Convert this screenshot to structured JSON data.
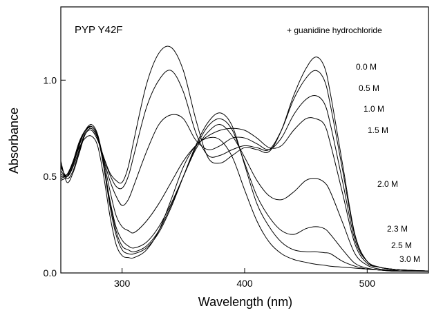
{
  "chart_data": {
    "type": "line",
    "title": "PYP Y42F",
    "annotation": "+ guanidine hydrochloride",
    "xlabel": "Wavelength (nm)",
    "ylabel": "Absorbance",
    "xlim": [
      250,
      550
    ],
    "ylim": [
      0,
      1.38
    ],
    "x_ticks": [
      300,
      400,
      500
    ],
    "y_ticks": [
      0.0,
      0.5,
      1.0
    ],
    "x_tick_labels": [
      "300",
      "400",
      "500"
    ],
    "y_tick_labels": [
      "0.0",
      "0.5",
      "1.0"
    ],
    "grid": false,
    "legend": "none",
    "line_color": "#000000",
    "series": [
      {
        "name": "0.0 M",
        "x": [
          250,
          255,
          260,
          265,
          270,
          275,
          280,
          285,
          290,
          295,
          300,
          305,
          310,
          320,
          330,
          340,
          350,
          360,
          370,
          380,
          390,
          400,
          410,
          420,
          430,
          440,
          450,
          458,
          465,
          470,
          480,
          490,
          500,
          510,
          520,
          530,
          550
        ],
        "y": [
          0.58,
          0.47,
          0.52,
          0.62,
          0.72,
          0.74,
          0.69,
          0.6,
          0.52,
          0.48,
          0.47,
          0.55,
          0.7,
          0.98,
          1.14,
          1.17,
          1.05,
          0.8,
          0.6,
          0.57,
          0.61,
          0.65,
          0.64,
          0.63,
          0.74,
          0.92,
          1.06,
          1.12,
          1.07,
          0.93,
          0.56,
          0.2,
          0.06,
          0.03,
          0.02,
          0.015,
          0.01
        ]
      },
      {
        "name": "0.5 M",
        "x": [
          250,
          255,
          260,
          265,
          270,
          275,
          280,
          285,
          290,
          295,
          300,
          305,
          310,
          320,
          330,
          340,
          350,
          360,
          370,
          380,
          390,
          400,
          410,
          420,
          430,
          440,
          450,
          458,
          465,
          470,
          480,
          490,
          500,
          510,
          520,
          530,
          550
        ],
        "y": [
          0.56,
          0.49,
          0.53,
          0.63,
          0.72,
          0.75,
          0.7,
          0.6,
          0.51,
          0.45,
          0.44,
          0.5,
          0.62,
          0.86,
          1.0,
          1.05,
          0.94,
          0.73,
          0.61,
          0.61,
          0.64,
          0.66,
          0.65,
          0.64,
          0.74,
          0.9,
          1.01,
          1.05,
          1.0,
          0.87,
          0.53,
          0.19,
          0.06,
          0.03,
          0.02,
          0.015,
          0.01
        ]
      },
      {
        "name": "1.0 M",
        "x": [
          250,
          255,
          260,
          265,
          270,
          275,
          280,
          285,
          290,
          295,
          300,
          305,
          310,
          320,
          330,
          340,
          350,
          360,
          370,
          380,
          390,
          400,
          410,
          420,
          430,
          440,
          450,
          458,
          465,
          470,
          480,
          490,
          500,
          510,
          520,
          530,
          550
        ],
        "y": [
          0.55,
          0.5,
          0.55,
          0.64,
          0.73,
          0.76,
          0.71,
          0.59,
          0.48,
          0.4,
          0.35,
          0.38,
          0.46,
          0.63,
          0.77,
          0.82,
          0.8,
          0.69,
          0.64,
          0.66,
          0.7,
          0.7,
          0.67,
          0.64,
          0.7,
          0.82,
          0.9,
          0.92,
          0.88,
          0.77,
          0.47,
          0.17,
          0.06,
          0.03,
          0.02,
          0.015,
          0.01
        ]
      },
      {
        "name": "1.5 M",
        "x": [
          250,
          255,
          260,
          265,
          270,
          275,
          280,
          285,
          290,
          295,
          300,
          305,
          310,
          320,
          330,
          340,
          350,
          360,
          370,
          380,
          390,
          400,
          410,
          420,
          430,
          440,
          450,
          458,
          465,
          470,
          480,
          490,
          500,
          510,
          520,
          530,
          550
        ],
        "y": [
          0.53,
          0.5,
          0.56,
          0.66,
          0.74,
          0.77,
          0.72,
          0.58,
          0.43,
          0.3,
          0.24,
          0.22,
          0.21,
          0.27,
          0.36,
          0.47,
          0.58,
          0.66,
          0.71,
          0.74,
          0.75,
          0.74,
          0.7,
          0.65,
          0.66,
          0.74,
          0.8,
          0.8,
          0.77,
          0.67,
          0.41,
          0.15,
          0.05,
          0.03,
          0.02,
          0.015,
          0.01
        ]
      },
      {
        "name": "2.0 M",
        "x": [
          250,
          255,
          260,
          265,
          270,
          275,
          280,
          285,
          290,
          295,
          300,
          305,
          310,
          320,
          330,
          340,
          350,
          360,
          370,
          380,
          390,
          400,
          410,
          420,
          430,
          440,
          450,
          458,
          465,
          470,
          480,
          490,
          500,
          510,
          520,
          530,
          550
        ],
        "y": [
          0.51,
          0.51,
          0.57,
          0.67,
          0.74,
          0.75,
          0.7,
          0.56,
          0.38,
          0.24,
          0.17,
          0.14,
          0.13,
          0.16,
          0.24,
          0.36,
          0.5,
          0.64,
          0.73,
          0.77,
          0.71,
          0.6,
          0.48,
          0.4,
          0.38,
          0.42,
          0.48,
          0.49,
          0.47,
          0.42,
          0.26,
          0.1,
          0.04,
          0.02,
          0.015,
          0.01,
          0.01
        ]
      },
      {
        "name": "2.3 M",
        "x": [
          250,
          255,
          260,
          265,
          270,
          275,
          280,
          285,
          290,
          295,
          300,
          305,
          310,
          320,
          330,
          340,
          350,
          360,
          370,
          380,
          390,
          400,
          410,
          420,
          430,
          440,
          450,
          458,
          465,
          470,
          480,
          490,
          500,
          510,
          520,
          530,
          550
        ],
        "y": [
          0.5,
          0.51,
          0.57,
          0.67,
          0.74,
          0.76,
          0.71,
          0.56,
          0.37,
          0.22,
          0.14,
          0.12,
          0.11,
          0.14,
          0.22,
          0.35,
          0.5,
          0.65,
          0.76,
          0.8,
          0.74,
          0.57,
          0.4,
          0.29,
          0.22,
          0.2,
          0.23,
          0.24,
          0.23,
          0.2,
          0.12,
          0.05,
          0.025,
          0.015,
          0.01,
          0.01,
          0.01
        ]
      },
      {
        "name": "2.5 M",
        "x": [
          250,
          255,
          260,
          265,
          270,
          275,
          280,
          285,
          290,
          295,
          300,
          305,
          310,
          320,
          330,
          340,
          350,
          360,
          370,
          380,
          390,
          400,
          410,
          420,
          430,
          440,
          450,
          458,
          465,
          470,
          480,
          490,
          500,
          510,
          520,
          530,
          550
        ],
        "y": [
          0.49,
          0.51,
          0.58,
          0.68,
          0.74,
          0.76,
          0.71,
          0.55,
          0.35,
          0.2,
          0.12,
          0.1,
          0.1,
          0.13,
          0.21,
          0.34,
          0.5,
          0.66,
          0.78,
          0.83,
          0.76,
          0.56,
          0.36,
          0.24,
          0.16,
          0.12,
          0.11,
          0.11,
          0.105,
          0.1,
          0.06,
          0.035,
          0.02,
          0.015,
          0.01,
          0.01,
          0.01
        ]
      },
      {
        "name": "3.0 M",
        "x": [
          250,
          255,
          260,
          265,
          270,
          275,
          280,
          285,
          290,
          295,
          300,
          305,
          310,
          320,
          330,
          340,
          350,
          360,
          370,
          380,
          390,
          400,
          410,
          420,
          430,
          440,
          450,
          458,
          465,
          470,
          480,
          490,
          500,
          510,
          520,
          530,
          550
        ],
        "y": [
          0.48,
          0.5,
          0.57,
          0.65,
          0.7,
          0.71,
          0.66,
          0.5,
          0.3,
          0.15,
          0.09,
          0.08,
          0.08,
          0.12,
          0.22,
          0.38,
          0.55,
          0.66,
          0.7,
          0.69,
          0.6,
          0.43,
          0.27,
          0.16,
          0.1,
          0.07,
          0.055,
          0.045,
          0.04,
          0.035,
          0.03,
          0.025,
          0.02,
          0.015,
          0.012,
          0.01,
          0.008
        ]
      }
    ]
  }
}
